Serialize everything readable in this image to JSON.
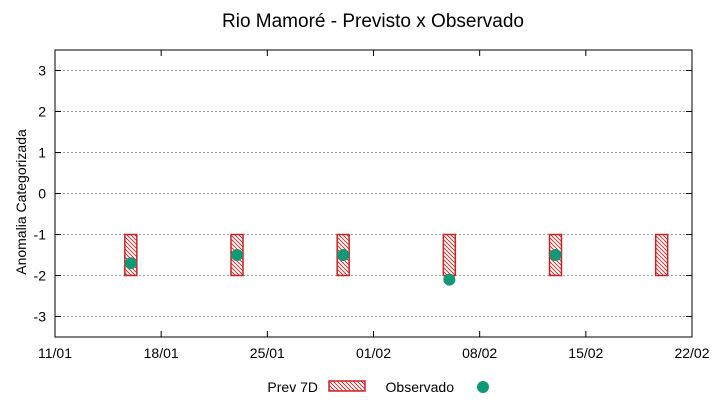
{
  "chart_data": {
    "type": "scatter",
    "title": "Rio Mamoré - Previsto x Observado",
    "xlabel": "",
    "ylabel": "Anomalia Categorizada",
    "ylim": [
      -3.5,
      3.5
    ],
    "yticks": [
      -3,
      -2,
      -1,
      0,
      1,
      2,
      3
    ],
    "xlim": [
      0,
      42
    ],
    "xticks": [
      {
        "pos": 0,
        "label": "11/01"
      },
      {
        "pos": 7,
        "label": "18/01"
      },
      {
        "pos": 14,
        "label": "25/01"
      },
      {
        "pos": 21,
        "label": "01/02"
      },
      {
        "pos": 28,
        "label": "08/02"
      },
      {
        "pos": 35,
        "label": "15/02"
      },
      {
        "pos": 42,
        "label": "22/02"
      }
    ],
    "grid": true,
    "legend_position": "bottom",
    "series": [
      {
        "name": "Prev 7D",
        "kind": "range-box",
        "color": "#cc2222",
        "x": [
          5,
          12,
          19,
          26,
          33,
          40
        ],
        "low": [
          -2,
          -2,
          -2,
          -2,
          -2,
          -2
        ],
        "high": [
          -1,
          -1,
          -1,
          -1,
          -1,
          -1
        ]
      },
      {
        "name": "Observado",
        "kind": "point",
        "color": "#119977",
        "x": [
          5,
          12,
          19,
          26,
          33
        ],
        "values": [
          -1.7,
          -1.5,
          -1.5,
          -2.1,
          -1.5
        ]
      }
    ]
  }
}
